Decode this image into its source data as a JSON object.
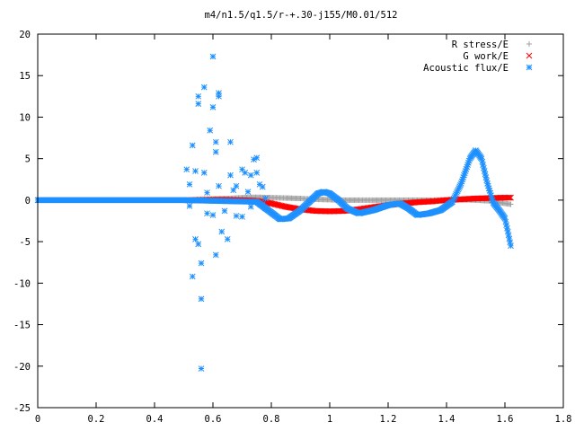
{
  "chart_data": {
    "type": "scatter",
    "title": "m4/n1.5/q1.5/r-+.30-j155/M0.01/512",
    "xlabel": "",
    "ylabel": "",
    "xlim": [
      0,
      1.8
    ],
    "ylim": [
      -25,
      20
    ],
    "x_ticks": [
      "0",
      "0.2",
      "0.4",
      "0.6",
      "0.8",
      "1",
      "1.2",
      "1.4",
      "1.6",
      "1.8"
    ],
    "y_ticks": [
      "20",
      "15",
      "10",
      "5",
      "0",
      "-5",
      "-10",
      "-15",
      "-20",
      "-25"
    ],
    "legend_position": "top-right",
    "series": [
      {
        "name": "R stress/E",
        "marker": "+",
        "color": "#a0a0a0",
        "points": [
          [
            0.51,
            0.0
          ],
          [
            0.55,
            0.1
          ],
          [
            0.6,
            0.15
          ],
          [
            0.65,
            0.2
          ],
          [
            0.7,
            0.3
          ],
          [
            0.75,
            0.35
          ],
          [
            0.8,
            0.3
          ],
          [
            0.85,
            0.25
          ],
          [
            0.9,
            0.2
          ],
          [
            0.95,
            0.1
          ],
          [
            1.0,
            0.05
          ],
          [
            1.05,
            0.0
          ],
          [
            1.1,
            0.0
          ],
          [
            1.15,
            0.0
          ],
          [
            1.2,
            0.0
          ],
          [
            1.25,
            0.0
          ],
          [
            1.3,
            0.0
          ],
          [
            1.35,
            0.0
          ],
          [
            1.4,
            0.05
          ],
          [
            1.45,
            0.05
          ],
          [
            1.5,
            0.0
          ],
          [
            1.55,
            -0.1
          ],
          [
            1.6,
            -0.4
          ],
          [
            1.62,
            -0.5
          ]
        ]
      },
      {
        "name": "G work/E",
        "marker": "x",
        "color": "#ff0000",
        "points": [
          [
            0.51,
            0.0
          ],
          [
            0.55,
            0.0
          ],
          [
            0.6,
            0.05
          ],
          [
            0.65,
            0.05
          ],
          [
            0.7,
            0.0
          ],
          [
            0.75,
            -0.1
          ],
          [
            0.8,
            -0.4
          ],
          [
            0.85,
            -0.8
          ],
          [
            0.9,
            -1.1
          ],
          [
            0.95,
            -1.3
          ],
          [
            1.0,
            -1.35
          ],
          [
            1.05,
            -1.3
          ],
          [
            1.1,
            -1.1
          ],
          [
            1.15,
            -0.85
          ],
          [
            1.2,
            -0.6
          ],
          [
            1.25,
            -0.4
          ],
          [
            1.3,
            -0.25
          ],
          [
            1.35,
            -0.15
          ],
          [
            1.4,
            0.0
          ],
          [
            1.45,
            0.1
          ],
          [
            1.5,
            0.2
          ],
          [
            1.55,
            0.25
          ],
          [
            1.6,
            0.3
          ],
          [
            1.62,
            0.3
          ]
        ]
      },
      {
        "name": "Acoustic flux/E",
        "marker": "*",
        "color": "#1e90ff",
        "line_points": [
          [
            0.0,
            0.0
          ],
          [
            0.1,
            0.0
          ],
          [
            0.2,
            0.0
          ],
          [
            0.3,
            0.0
          ],
          [
            0.4,
            0.0
          ],
          [
            0.5,
            0.0
          ],
          [
            0.75,
            -0.2
          ],
          [
            0.8,
            -1.5
          ],
          [
            0.83,
            -2.3
          ],
          [
            0.86,
            -2.2
          ],
          [
            0.9,
            -1.2
          ],
          [
            0.93,
            -0.2
          ],
          [
            0.96,
            0.8
          ],
          [
            0.98,
            1.0
          ],
          [
            1.0,
            0.8
          ],
          [
            1.03,
            0.0
          ],
          [
            1.06,
            -1.0
          ],
          [
            1.1,
            -1.6
          ],
          [
            1.15,
            -1.2
          ],
          [
            1.2,
            -0.6
          ],
          [
            1.24,
            -0.4
          ],
          [
            1.27,
            -1.0
          ],
          [
            1.3,
            -1.8
          ],
          [
            1.34,
            -1.6
          ],
          [
            1.38,
            -1.2
          ],
          [
            1.42,
            -0.2
          ],
          [
            1.45,
            2.0
          ],
          [
            1.48,
            5.0
          ],
          [
            1.5,
            6.0
          ],
          [
            1.52,
            5.0
          ],
          [
            1.54,
            2.0
          ],
          [
            1.56,
            -0.3
          ],
          [
            1.58,
            -1.2
          ],
          [
            1.6,
            -2.2
          ],
          [
            1.61,
            -3.8
          ],
          [
            1.62,
            -5.5
          ]
        ],
        "scatter_points": [
          [
            0.51,
            3.7
          ],
          [
            0.52,
            1.9
          ],
          [
            0.52,
            -0.7
          ],
          [
            0.53,
            6.6
          ],
          [
            0.53,
            -9.2
          ],
          [
            0.54,
            -4.7
          ],
          [
            0.54,
            3.5
          ],
          [
            0.55,
            12.5
          ],
          [
            0.55,
            11.6
          ],
          [
            0.55,
            -5.3
          ],
          [
            0.56,
            -11.9
          ],
          [
            0.56,
            -7.6
          ],
          [
            0.56,
            -20.3
          ],
          [
            0.57,
            13.6
          ],
          [
            0.57,
            3.3
          ],
          [
            0.58,
            0.9
          ],
          [
            0.58,
            -1.6
          ],
          [
            0.59,
            8.4
          ],
          [
            0.6,
            17.3
          ],
          [
            0.6,
            11.2
          ],
          [
            0.6,
            -1.8
          ],
          [
            0.61,
            5.8
          ],
          [
            0.61,
            7.0
          ],
          [
            0.61,
            -6.6
          ],
          [
            0.62,
            12.9
          ],
          [
            0.62,
            12.5
          ],
          [
            0.62,
            1.7
          ],
          [
            0.63,
            -3.8
          ],
          [
            0.64,
            -1.3
          ],
          [
            0.65,
            -4.7
          ],
          [
            0.66,
            3.0
          ],
          [
            0.66,
            7.0
          ],
          [
            0.67,
            1.2
          ],
          [
            0.68,
            -1.9
          ],
          [
            0.68,
            1.7
          ],
          [
            0.7,
            3.7
          ],
          [
            0.7,
            -2.0
          ],
          [
            0.71,
            3.3
          ],
          [
            0.72,
            1.0
          ],
          [
            0.73,
            3.0
          ],
          [
            0.73,
            -0.8
          ],
          [
            0.74,
            4.9
          ],
          [
            0.75,
            5.1
          ],
          [
            0.75,
            3.3
          ],
          [
            0.76,
            1.9
          ],
          [
            0.77,
            1.6
          ],
          [
            0.77,
            -0.5
          ],
          [
            0.78,
            -1.0
          ],
          [
            0.78,
            0.2
          ]
        ]
      }
    ]
  }
}
